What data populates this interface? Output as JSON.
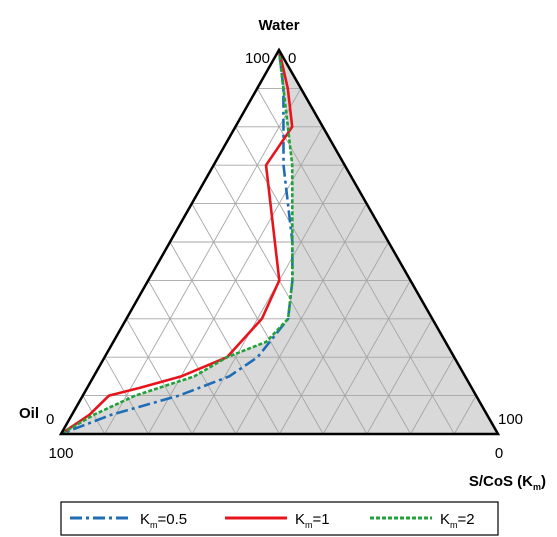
{
  "chart_data": {
    "type": "ternary",
    "vertices": {
      "top": "Water",
      "left": "Oil",
      "right": "S/CoS (K",
      "right_sub": "m",
      "right_close": ")"
    },
    "tick_labels": {
      "top_left": "100",
      "top_right": "0",
      "left_top": "0",
      "left_bottom": "100",
      "right_top": "100",
      "right_bottom": "0"
    },
    "grid_step": 10,
    "one_phase_region": "grey shaded area right of the boundary curves",
    "shade_color": "#d9d9d9",
    "series": [
      {
        "name": "=0.5",
        "label_main": "K",
        "label_sub": "m",
        "color": "#1f6db5",
        "dash": "12,4,3,4",
        "points": [
          {
            "water": 100,
            "oil": 0,
            "scos": 0
          },
          {
            "water": 90,
            "oil": 4,
            "scos": 6
          },
          {
            "water": 80,
            "oil": 9,
            "scos": 11
          },
          {
            "water": 70,
            "oil": 14,
            "scos": 16
          },
          {
            "water": 60,
            "oil": 18,
            "scos": 22
          },
          {
            "water": 50,
            "oil": 22,
            "scos": 28
          },
          {
            "water": 40,
            "oil": 27,
            "scos": 33
          },
          {
            "water": 30,
            "oil": 33,
            "scos": 37
          },
          {
            "water": 20,
            "oil": 45,
            "scos": 35
          },
          {
            "water": 15,
            "oil": 54,
            "scos": 31
          },
          {
            "water": 10,
            "oil": 68,
            "scos": 22
          },
          {
            "water": 5,
            "oil": 86,
            "scos": 9
          },
          {
            "water": 0,
            "oil": 100,
            "scos": 0
          }
        ]
      },
      {
        "name": "=1",
        "label_main": "K",
        "label_sub": "m",
        "color": "#e8141b",
        "dash": "",
        "points": [
          {
            "water": 100,
            "oil": 0,
            "scos": 0
          },
          {
            "water": 90,
            "oil": 3,
            "scos": 7
          },
          {
            "water": 80,
            "oil": 7,
            "scos": 13
          },
          {
            "water": 70,
            "oil": 18,
            "scos": 12
          },
          {
            "water": 60,
            "oil": 22,
            "scos": 18
          },
          {
            "water": 50,
            "oil": 26,
            "scos": 24
          },
          {
            "water": 40,
            "oil": 30,
            "scos": 30
          },
          {
            "water": 30,
            "oil": 39,
            "scos": 31
          },
          {
            "water": 20,
            "oil": 52,
            "scos": 28
          },
          {
            "water": 15,
            "oil": 65,
            "scos": 20
          },
          {
            "water": 12,
            "oil": 76,
            "scos": 12
          },
          {
            "water": 10,
            "oil": 84,
            "scos": 6
          },
          {
            "water": 5,
            "oil": 91,
            "scos": 4
          },
          {
            "water": 0,
            "oil": 100,
            "scos": 0
          }
        ]
      },
      {
        "name": "=2",
        "label_main": "K",
        "label_sub": "m",
        "color": "#22a03a",
        "dash": "4,2",
        "points": [
          {
            "water": 100,
            "oil": 0,
            "scos": 0
          },
          {
            "water": 90,
            "oil": 4,
            "scos": 6
          },
          {
            "water": 80,
            "oil": 8,
            "scos": 12
          },
          {
            "water": 70,
            "oil": 12,
            "scos": 18
          },
          {
            "water": 60,
            "oil": 17,
            "scos": 23
          },
          {
            "water": 50,
            "oil": 22,
            "scos": 28
          },
          {
            "water": 40,
            "oil": 27,
            "scos": 33
          },
          {
            "water": 30,
            "oil": 33,
            "scos": 37
          },
          {
            "water": 24,
            "oil": 41,
            "scos": 35
          },
          {
            "water": 20,
            "oil": 52,
            "scos": 28
          },
          {
            "water": 15,
            "oil": 62,
            "scos": 23
          },
          {
            "water": 10,
            "oil": 78,
            "scos": 12
          },
          {
            "water": 5,
            "oil": 90,
            "scos": 5
          },
          {
            "water": 0,
            "oil": 100,
            "scos": 0
          }
        ]
      }
    ]
  }
}
